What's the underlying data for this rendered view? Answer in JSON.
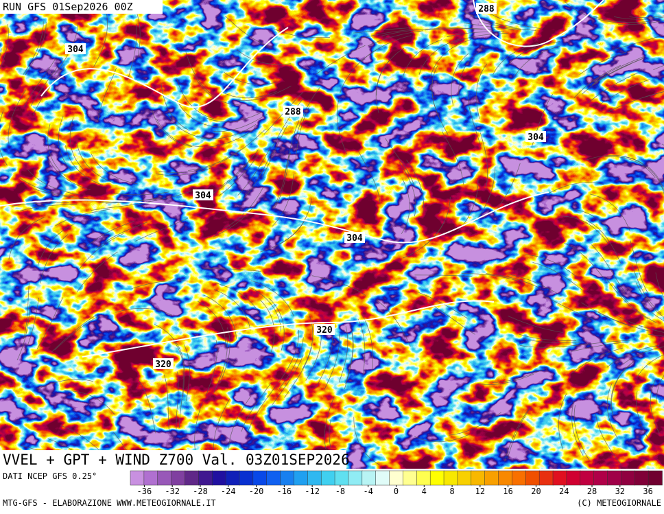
{
  "header": {
    "run": "RUN GFS 01Sep2026 00Z"
  },
  "map": {
    "contours": [
      304,
      288,
      288,
      304,
      304,
      304,
      320,
      320
    ]
  },
  "title": "VVEL + GPT + WIND Z700 Val. 03Z01SEP2026",
  "footer": {
    "source": "DATI NCEP GFS 0.25°",
    "credit_left": "MTG-GFS - ELABORAZIONE WWW.METEOGIORNALE.IT",
    "credit_right": "(C) METEOGIORNALE"
  },
  "colorbar": {
    "lim": [
      -38,
      38
    ],
    "ticks": [
      -36,
      -32,
      -28,
      -24,
      -20,
      -16,
      -12,
      -8,
      -4,
      0,
      4,
      8,
      12,
      16,
      20,
      24,
      28,
      32,
      36
    ],
    "colors": [
      "#c890e0",
      "#b070d0",
      "#9858b8",
      "#8040a0",
      "#602888",
      "#401890",
      "#2010a0",
      "#1020b8",
      "#0830d0",
      "#0848e8",
      "#1060f0",
      "#1880f0",
      "#20a0f0",
      "#30b8f0",
      "#40d0f0",
      "#60e0f0",
      "#90ecf4",
      "#b8f4f4",
      "#e0fcf8",
      "#ffffd0",
      "#ffff90",
      "#ffff50",
      "#ffff00",
      "#f8e800",
      "#f8d000",
      "#f8b800",
      "#f8a000",
      "#f88800",
      "#f87000",
      "#f05000",
      "#e83010",
      "#e01020",
      "#d00030",
      "#c00040",
      "#b00048",
      "#a00048",
      "#900040",
      "#800038",
      "#700030"
    ]
  }
}
